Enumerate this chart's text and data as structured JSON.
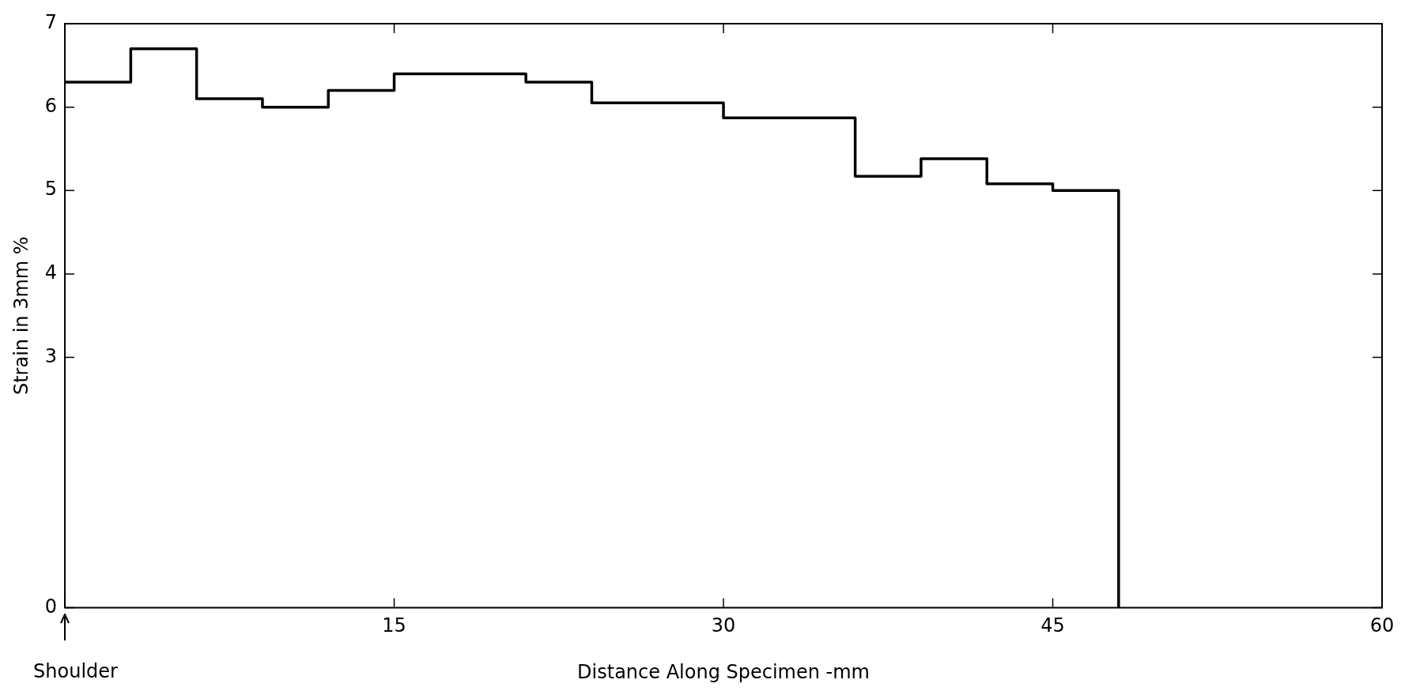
{
  "chart_data": {
    "type": "step",
    "xlabel": "Distance Along Specimen -mm",
    "ylabel": "Strain in 3mm %",
    "x": [
      0,
      3,
      6,
      9,
      12,
      15,
      18,
      21,
      24,
      27,
      30,
      33,
      36,
      39,
      42,
      45,
      48
    ],
    "series": [
      {
        "color": "#000000",
        "values": [
          6.3,
          6.7,
          6.1,
          6.0,
          6.2,
          6.4,
          6.4,
          6.3,
          6.05,
          6.05,
          5.87,
          5.87,
          5.17,
          5.38,
          5.08,
          5.0,
          0
        ]
      }
    ],
    "xlim": [
      0,
      60
    ],
    "xticks": [
      {
        "value": 0,
        "label": null
      },
      15,
      30,
      45,
      60
    ],
    "ylim": [
      0,
      7
    ],
    "yticks": [
      0,
      3,
      4,
      5,
      6,
      7
    ],
    "annotations": [
      "Shoulder"
    ],
    "grid": false,
    "legend": false,
    "marker": "none",
    "line_style": "solid"
  }
}
